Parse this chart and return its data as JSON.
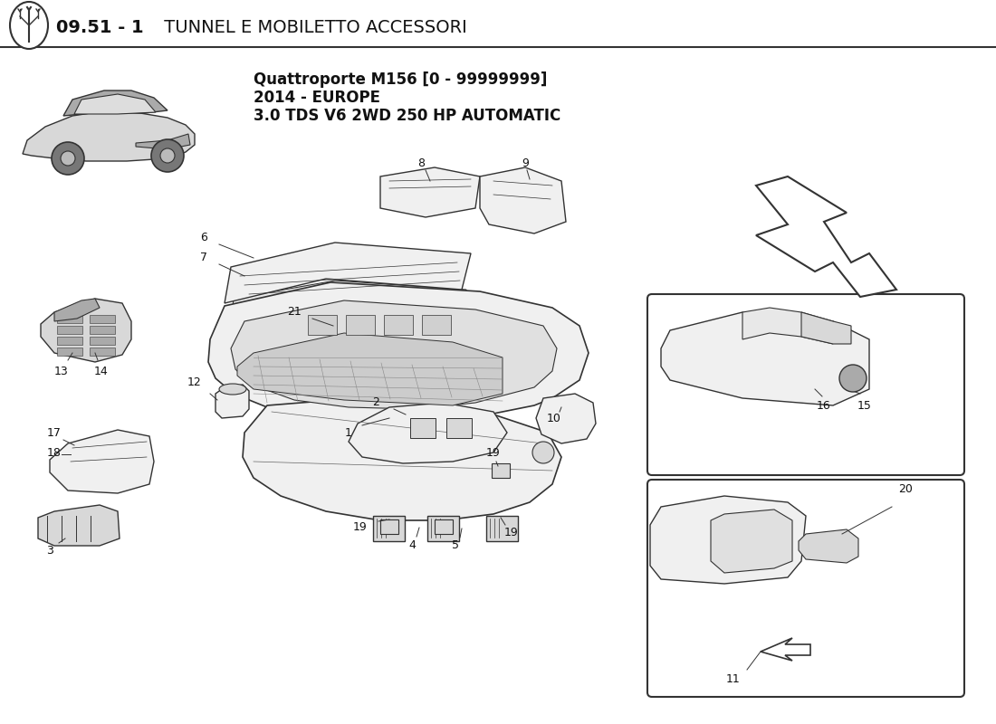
{
  "bg_color": "#ffffff",
  "title_bold": "09.51 - 1",
  "title_rest": " TUNNEL E MOBILETTO ACCESSORI",
  "subtitle_line1": "Quattroporte M156 [0 - 99999999]",
  "subtitle_line2": "2014 - EUROPE",
  "subtitle_line3": "3.0 TDS V6 2WD 250 HP AUTOMATIC",
  "line_color": "#333333",
  "light_fill": "#f0f0f0",
  "mid_fill": "#d8d8d8",
  "dark_fill": "#aaaaaa"
}
